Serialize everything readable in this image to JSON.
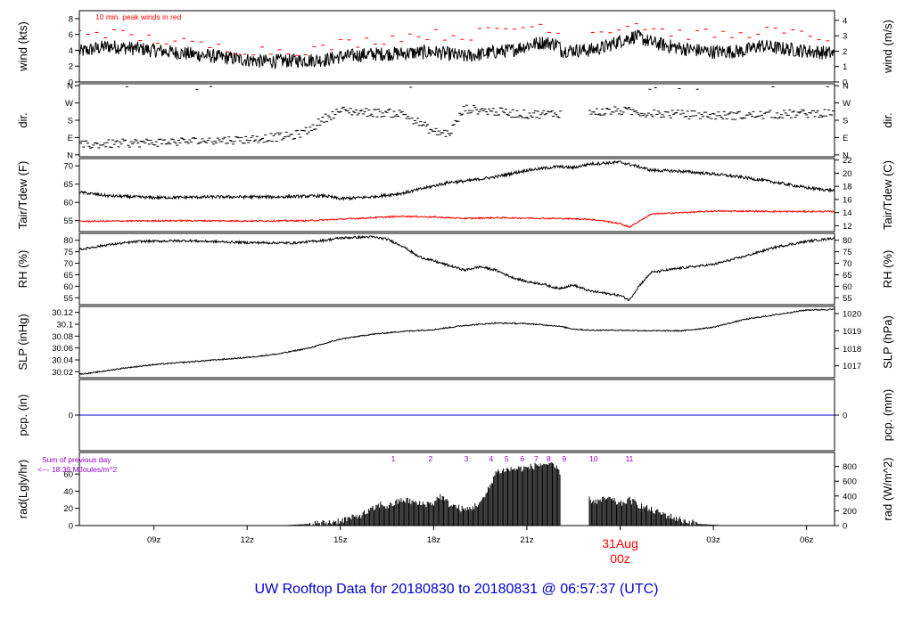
{
  "page": {
    "footer_title": "UW Rooftop Data for 20180830  to  20180831 @ 06:57:37  (UTC)"
  },
  "colors": {
    "axis": "#000000",
    "peak": "#ff0000",
    "dew": "#ff0000",
    "precip": "#0000cc",
    "solar_label": "#9900cc",
    "title": "#0000cc",
    "date_marker": "#ff0000"
  },
  "time_axis": {
    "range_hours": [
      6.6,
      30.9
    ],
    "ticks": [
      {
        "h": 9,
        "label": "09z"
      },
      {
        "h": 12,
        "label": "12z"
      },
      {
        "h": 15,
        "label": "15z"
      },
      {
        "h": 18,
        "label": "18z"
      },
      {
        "h": 21,
        "label": "21z"
      },
      {
        "h": 27,
        "label": "03z"
      },
      {
        "h": 30,
        "label": "06z"
      }
    ],
    "date_marker": {
      "h": 24,
      "date": "31Aug",
      "hour_label": "00z"
    }
  },
  "chart_data": [
    {
      "id": "wind",
      "type": "line",
      "left_label": "wind (kts)",
      "right_label": "wind (m/s)",
      "ylim": [
        0,
        9
      ],
      "left_ticks": [
        0,
        2,
        4,
        6,
        8
      ],
      "right_ticks": [
        {
          "v": 0,
          "label": "0"
        },
        {
          "v": 1.944,
          "label": "1"
        },
        {
          "v": 3.888,
          "label": "2"
        },
        {
          "v": 5.832,
          "label": "3"
        },
        {
          "v": 7.776,
          "label": "4"
        }
      ],
      "annotation": "10 min. peak winds in red",
      "gaps": [
        [
          22.1,
          23.0
        ]
      ],
      "series": [
        {
          "role": "speed",
          "x": [
            6.6,
            7.5,
            8.5,
            9.5,
            10.5,
            11.5,
            12.0,
            12.5,
            13.5,
            14.5,
            15.0,
            16.0,
            17.0,
            18.0,
            18.7,
            19.0,
            20.0,
            20.5,
            21.0,
            21.5,
            22.0,
            22.1,
            23.0,
            23.5,
            24.0,
            24.5,
            25.0,
            26.0,
            27.0,
            28.0,
            28.5,
            29.0,
            30.0,
            30.9
          ],
          "y": [
            3.8,
            4.5,
            4.2,
            3.8,
            3.4,
            3.0,
            2.8,
            2.6,
            2.7,
            2.8,
            3.2,
            3.5,
            3.6,
            3.8,
            3.4,
            3.2,
            3.8,
            4.0,
            4.6,
            5.0,
            4.8,
            4.0,
            4.0,
            4.4,
            5.2,
            5.8,
            5.0,
            4.2,
            3.8,
            3.9,
            4.6,
            4.3,
            3.9,
            3.6
          ],
          "noise": 0.9
        },
        {
          "role": "peak",
          "x": [
            6.6,
            7.5,
            8.5,
            9.5,
            10.5,
            11.5,
            12.5,
            13.5,
            14.5,
            15.0,
            16.0,
            17.0,
            18.0,
            19.0,
            20.0,
            21.0,
            21.5,
            22.0,
            23.0,
            24.0,
            24.5,
            25.0,
            26.0,
            27.0,
            28.0,
            28.5,
            29.0,
            30.0,
            30.9
          ],
          "y": [
            6.5,
            6.2,
            5.6,
            5.2,
            4.6,
            4.2,
            4.0,
            4.0,
            4.2,
            4.8,
            5.2,
            5.8,
            6.0,
            5.8,
            6.5,
            7.0,
            7.2,
            6.6,
            6.2,
            7.0,
            7.4,
            6.8,
            6.0,
            6.0,
            5.8,
            6.8,
            6.2,
            5.9,
            5.6
          ]
        }
      ]
    },
    {
      "id": "direction",
      "type": "scatter",
      "left_label": "dir.",
      "right_label": "dir.",
      "ylim": [
        -10,
        370
      ],
      "left_ticks": [
        {
          "v": 0,
          "label": "N"
        },
        {
          "v": 90,
          "label": "E"
        },
        {
          "v": 180,
          "label": "S"
        },
        {
          "v": 270,
          "label": "W"
        },
        {
          "v": 360,
          "label": "N"
        }
      ],
      "right_ticks": [
        {
          "v": 0,
          "label": "N"
        },
        {
          "v": 90,
          "label": "E"
        },
        {
          "v": 180,
          "label": "S"
        },
        {
          "v": 270,
          "label": "W"
        },
        {
          "v": 360,
          "label": "N"
        }
      ],
      "gaps": [
        [
          22.1,
          23.0
        ]
      ],
      "series": [
        {
          "role": "direction",
          "x": [
            6.6,
            8.0,
            10.0,
            12.0,
            13.5,
            14.0,
            14.5,
            15.0,
            16.0,
            17.0,
            17.5,
            18.0,
            18.5,
            19.0,
            20.0,
            21.0,
            22.0,
            23.0,
            24.0,
            25.0,
            26.0,
            27.0,
            28.0,
            29.0,
            30.0,
            30.9
          ],
          "y": [
            50,
            60,
            70,
            80,
            100,
            130,
            190,
            230,
            220,
            215,
            170,
            120,
            110,
            240,
            225,
            210,
            215,
            220,
            230,
            215,
            210,
            205,
            205,
            210,
            215,
            220
          ],
          "spread": 22
        }
      ]
    },
    {
      "id": "temperature",
      "type": "line",
      "left_label": "Tair/Tdew (F)",
      "right_label": "Tair/Tdew (C)",
      "ylim": [
        52,
        72
      ],
      "left_ticks": [
        55,
        60,
        65,
        70
      ],
      "right_ticks": [
        {
          "v": 53.6,
          "label": "12"
        },
        {
          "v": 57.2,
          "label": "14"
        },
        {
          "v": 60.8,
          "label": "16"
        },
        {
          "v": 64.4,
          "label": "18"
        },
        {
          "v": 68.0,
          "label": "20"
        },
        {
          "v": 71.6,
          "label": "22"
        }
      ],
      "series": [
        {
          "role": "air",
          "x": [
            6.6,
            7.5,
            9.0,
            11.0,
            13.0,
            14.5,
            15.0,
            16.0,
            17.0,
            17.5,
            18.5,
            19.0,
            20.0,
            21.0,
            22.0,
            22.5,
            23.0,
            24.0,
            24.5,
            25.0,
            26.0,
            27.0,
            28.0,
            29.0,
            30.0,
            30.9
          ],
          "y": [
            62.8,
            61.8,
            61.3,
            61.5,
            61.5,
            61.8,
            61.0,
            61.5,
            62.5,
            63.5,
            65.5,
            65.8,
            67.0,
            68.8,
            69.8,
            69.5,
            70.5,
            71.0,
            70.0,
            68.8,
            68.5,
            67.8,
            66.8,
            65.5,
            64.0,
            63.2
          ],
          "noise": 0.4
        },
        {
          "role": "dew",
          "x": [
            6.6,
            8.0,
            10.0,
            12.0,
            14.0,
            15.0,
            16.0,
            17.0,
            18.0,
            19.0,
            20.0,
            21.0,
            22.0,
            23.0,
            23.5,
            24.0,
            24.3,
            24.6,
            25.0,
            26.0,
            27.0,
            28.0,
            29.0,
            30.0,
            30.9
          ],
          "y": [
            54.8,
            54.9,
            55.0,
            54.9,
            55.0,
            55.4,
            55.8,
            56.2,
            56.0,
            55.6,
            55.8,
            55.7,
            55.6,
            55.4,
            54.9,
            54.2,
            53.2,
            54.8,
            56.8,
            57.2,
            57.6,
            57.6,
            57.5,
            57.5,
            57.5
          ],
          "noise": 0.2
        }
      ]
    },
    {
      "id": "humidity",
      "type": "line",
      "left_label": "RH (%)",
      "right_label": "RH (%)",
      "ylim": [
        52,
        83
      ],
      "left_ticks": [
        55,
        60,
        65,
        70,
        75,
        80
      ],
      "right_ticks": [
        {
          "v": 55,
          "label": "55"
        },
        {
          "v": 60,
          "label": "60"
        },
        {
          "v": 65,
          "label": "65"
        },
        {
          "v": 70,
          "label": "70"
        },
        {
          "v": 75,
          "label": "75"
        },
        {
          "v": 80,
          "label": "80"
        }
      ],
      "series": [
        {
          "role": "rh",
          "x": [
            6.6,
            7.5,
            8.5,
            10.0,
            12.0,
            13.5,
            14.5,
            15.0,
            16.0,
            16.5,
            17.0,
            17.5,
            18.0,
            18.5,
            19.0,
            19.5,
            20.0,
            20.5,
            21.0,
            21.5,
            22.0,
            22.5,
            23.0,
            23.5,
            24.0,
            24.3,
            24.6,
            25.0,
            26.0,
            27.0,
            28.0,
            29.0,
            30.0,
            30.9
          ],
          "y": [
            76.0,
            78.0,
            79.5,
            79.8,
            79.0,
            78.8,
            80.0,
            81.0,
            81.5,
            80.5,
            77.5,
            73.0,
            71.0,
            69.0,
            67.0,
            68.5,
            67.0,
            64.0,
            62.0,
            61.0,
            59.0,
            60.5,
            58.0,
            57.0,
            56.0,
            54.0,
            60.0,
            66.0,
            68.0,
            69.5,
            73.0,
            77.0,
            79.5,
            81.0
          ],
          "noise": 0.5
        }
      ]
    },
    {
      "id": "pressure",
      "type": "line",
      "left_label": "SLP (inHg)",
      "right_label": "SLP (hPa)",
      "ylim": [
        30.01,
        30.13
      ],
      "left_ticks": [
        30.02,
        30.04,
        30.06,
        30.08,
        30.1,
        30.12
      ],
      "right_ticks": [
        {
          "v": 30.03,
          "label": "1017"
        },
        {
          "v": 30.059,
          "label": "1018"
        },
        {
          "v": 30.089,
          "label": "1019"
        },
        {
          "v": 30.118,
          "label": "1020"
        }
      ],
      "series": [
        {
          "role": "slp",
          "x": [
            6.6,
            7.0,
            8.0,
            9.0,
            10.0,
            11.0,
            12.0,
            13.0,
            14.0,
            15.0,
            16.0,
            17.0,
            18.0,
            19.0,
            20.0,
            21.0,
            22.0,
            22.5,
            23.0,
            24.0,
            25.0,
            26.0,
            27.0,
            28.0,
            29.0,
            30.0,
            30.9
          ],
          "y": [
            30.016,
            30.018,
            30.026,
            30.032,
            30.036,
            30.04,
            30.044,
            30.05,
            30.06,
            30.075,
            30.083,
            30.088,
            30.091,
            30.098,
            30.102,
            30.101,
            30.097,
            30.092,
            30.09,
            30.09,
            30.089,
            30.089,
            30.095,
            30.108,
            30.116,
            30.124,
            30.125
          ],
          "noise": 0.001
        }
      ]
    },
    {
      "id": "precip",
      "type": "line",
      "left_label": "pcp. (in)",
      "right_label": "pcp. (mm)",
      "ylim": [
        -1,
        1
      ],
      "left_ticks": [
        {
          "v": 0,
          "label": "0"
        }
      ],
      "right_ticks": [
        {
          "v": 0,
          "label": "0"
        }
      ],
      "series": [
        {
          "role": "pcp",
          "x": [
            6.6,
            30.9
          ],
          "y": [
            0,
            0
          ]
        }
      ]
    },
    {
      "id": "radiation",
      "type": "area",
      "left_label": "rad(Lgly/hr)",
      "right_label": "rad (W/m^2)",
      "ylim": [
        0,
        85
      ],
      "left_ticks": [
        0,
        20,
        40,
        60
      ],
      "right_ticks": [
        {
          "v": 0,
          "label": "0"
        },
        {
          "v": 17.2,
          "label": "200"
        },
        {
          "v": 34.4,
          "label": "400"
        },
        {
          "v": 51.6,
          "label": "600"
        },
        {
          "v": 68.8,
          "label": "800"
        }
      ],
      "daily_sum_text": "Sum of previous day",
      "daily_sum_value": "<--- 18.39 MJoules/m^2",
      "hour_markers": [
        {
          "h": 16.7,
          "label": "1"
        },
        {
          "h": 17.9,
          "label": "2"
        },
        {
          "h": 19.05,
          "label": "3"
        },
        {
          "h": 19.85,
          "label": "4"
        },
        {
          "h": 20.35,
          "label": "5"
        },
        {
          "h": 20.85,
          "label": "6"
        },
        {
          "h": 21.3,
          "label": "7"
        },
        {
          "h": 21.7,
          "label": "8"
        },
        {
          "h": 22.2,
          "label": "9"
        },
        {
          "h": 23.15,
          "label": "10"
        },
        {
          "h": 24.3,
          "label": "11"
        }
      ],
      "gaps": [
        [
          22.1,
          23.0
        ]
      ],
      "series": [
        {
          "role": "solar",
          "x": [
            13.0,
            13.5,
            14.0,
            14.5,
            15.0,
            15.5,
            16.0,
            16.3,
            16.5,
            17.0,
            17.3,
            17.5,
            18.0,
            18.2,
            18.5,
            19.0,
            19.3,
            19.6,
            19.8,
            20.0,
            20.3,
            20.6,
            21.0,
            21.3,
            21.6,
            21.9,
            22.1,
            23.0,
            23.3,
            23.6,
            24.0,
            24.3,
            24.6,
            25.0,
            25.5,
            26.0,
            26.5,
            27.0,
            27.5
          ],
          "y": [
            0,
            1,
            2,
            3,
            6,
            10,
            18,
            25,
            22,
            30,
            28,
            25,
            26,
            35,
            25,
            18,
            22,
            30,
            45,
            62,
            65,
            66,
            67,
            70,
            72,
            68,
            62,
            30,
            28,
            32,
            25,
            30,
            24,
            18,
            12,
            6,
            2,
            1,
            0
          ],
          "noise": 4
        }
      ]
    }
  ]
}
